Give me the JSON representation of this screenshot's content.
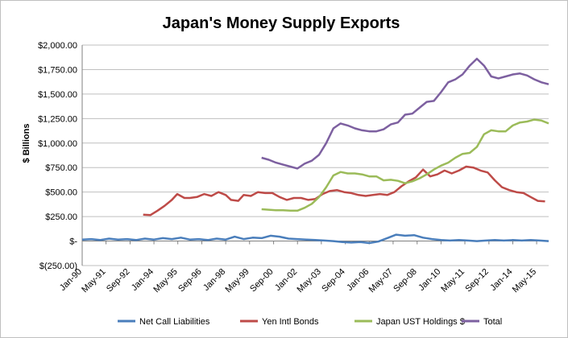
{
  "chart_data": {
    "type": "line",
    "title": "Japan's Money Supply Exports",
    "ylabel": "$ Billions",
    "xlabel": "",
    "ylim": [
      -250,
      2000
    ],
    "y_ticks": [
      {
        "value": 2000,
        "label": "$2,000.00"
      },
      {
        "value": 1750,
        "label": "$1,750.00"
      },
      {
        "value": 1500,
        "label": "$1,500.00"
      },
      {
        "value": 1250,
        "label": "$1,250.00"
      },
      {
        "value": 1000,
        "label": "$1,000.00"
      },
      {
        "value": 750,
        "label": "$750.00"
      },
      {
        "value": 500,
        "label": "$500.00"
      },
      {
        "value": 250,
        "label": "$250.00"
      },
      {
        "value": 0,
        "label": "$-"
      },
      {
        "value": -250,
        "label": "$(250.00)"
      }
    ],
    "x_ticks": [
      {
        "value": 1990.0,
        "label": "Jan-90"
      },
      {
        "value": 1991.33,
        "label": "May-91"
      },
      {
        "value": 1992.67,
        "label": "Sep-92"
      },
      {
        "value": 1994.0,
        "label": "Jan-94"
      },
      {
        "value": 1995.33,
        "label": "May-95"
      },
      {
        "value": 1996.67,
        "label": "Sep-96"
      },
      {
        "value": 1998.0,
        "label": "Jan-98"
      },
      {
        "value": 1999.33,
        "label": "May-99"
      },
      {
        "value": 2000.67,
        "label": "Sep-00"
      },
      {
        "value": 2002.0,
        "label": "Jan-02"
      },
      {
        "value": 2003.33,
        "label": "May-03"
      },
      {
        "value": 2004.67,
        "label": "Sep-04"
      },
      {
        "value": 2006.0,
        "label": "Jan-06"
      },
      {
        "value": 2007.33,
        "label": "May-07"
      },
      {
        "value": 2008.67,
        "label": "Sep-08"
      },
      {
        "value": 2010.0,
        "label": "Jan-10"
      },
      {
        "value": 2011.33,
        "label": "May-11"
      },
      {
        "value": 2012.67,
        "label": "Sep-12"
      },
      {
        "value": 2014.0,
        "label": "Jan-14"
      },
      {
        "value": 2015.33,
        "label": "May-15"
      }
    ],
    "xlim": [
      1990.0,
      2016.0
    ],
    "grid": "horizontal",
    "legend_position": "bottom",
    "series": [
      {
        "name": "Net Call Liabilities",
        "color": "#4a7ebb",
        "x": [
          1990.0,
          1990.5,
          1991.0,
          1991.5,
          1992.0,
          1992.5,
          1993.0,
          1993.5,
          1994.0,
          1994.5,
          1995.0,
          1995.5,
          1996.0,
          1996.5,
          1997.0,
          1997.5,
          1998.0,
          1998.5,
          1999.0,
          1999.5,
          2000.0,
          2000.5,
          2001.0,
          2001.5,
          2002.0,
          2002.5,
          2003.0,
          2003.5,
          2004.0,
          2004.5,
          2005.0,
          2005.5,
          2006.0,
          2006.5,
          2007.0,
          2007.5,
          2008.0,
          2008.5,
          2009.0,
          2009.5,
          2010.0,
          2010.5,
          2011.0,
          2011.5,
          2012.0,
          2012.5,
          2013.0,
          2013.5,
          2014.0,
          2014.5,
          2015.0,
          2015.5,
          2016.0
        ],
        "values": [
          15,
          20,
          10,
          25,
          15,
          20,
          10,
          25,
          15,
          30,
          20,
          35,
          15,
          20,
          10,
          25,
          15,
          45,
          20,
          35,
          30,
          55,
          45,
          25,
          20,
          15,
          10,
          5,
          0,
          -10,
          -15,
          -10,
          -20,
          -5,
          30,
          65,
          55,
          60,
          35,
          20,
          10,
          5,
          10,
          5,
          0,
          5,
          10,
          5,
          10,
          5,
          10,
          5,
          0
        ]
      },
      {
        "name": "Yen Intl Bonds",
        "color": "#be4b48",
        "x": [
          1993.4,
          1993.8,
          1994.2,
          1994.6,
          1995.0,
          1995.3,
          1995.7,
          1996.0,
          1996.4,
          1996.8,
          1997.2,
          1997.6,
          1998.0,
          1998.3,
          1998.7,
          1999.0,
          1999.4,
          1999.8,
          2000.2,
          2000.6,
          2001.0,
          2001.4,
          2001.8,
          2002.2,
          2002.6,
          2003.0,
          2003.4,
          2003.8,
          2004.2,
          2004.6,
          2005.0,
          2005.4,
          2005.8,
          2006.2,
          2006.6,
          2007.0,
          2007.4,
          2007.8,
          2008.2,
          2008.6,
          2009.0,
          2009.4,
          2009.8,
          2010.2,
          2010.6,
          2011.0,
          2011.4,
          2011.8,
          2012.2,
          2012.6,
          2013.0,
          2013.4,
          2013.8,
          2014.2,
          2014.6,
          2015.0,
          2015.4,
          2015.8
        ],
        "values": [
          270,
          265,
          310,
          360,
          420,
          480,
          440,
          440,
          450,
          480,
          460,
          500,
          470,
          420,
          410,
          470,
          460,
          500,
          490,
          490,
          450,
          420,
          440,
          440,
          420,
          430,
          480,
          510,
          520,
          500,
          490,
          470,
          460,
          470,
          480,
          470,
          500,
          560,
          610,
          650,
          730,
          660,
          680,
          720,
          690,
          720,
          760,
          750,
          720,
          700,
          620,
          550,
          520,
          500,
          490,
          450,
          410,
          405
        ]
      },
      {
        "name": "Japan UST Holdings $",
        "color": "#9bbb59",
        "x": [
          2000.0,
          2000.4,
          2000.8,
          2001.2,
          2001.6,
          2002.0,
          2002.4,
          2002.8,
          2003.2,
          2003.6,
          2004.0,
          2004.4,
          2004.8,
          2005.2,
          2005.6,
          2006.0,
          2006.4,
          2006.8,
          2007.2,
          2007.6,
          2008.0,
          2008.4,
          2008.8,
          2009.2,
          2009.6,
          2010.0,
          2010.4,
          2010.8,
          2011.2,
          2011.6,
          2012.0,
          2012.4,
          2012.8,
          2013.2,
          2013.6,
          2014.0,
          2014.4,
          2014.8,
          2015.2,
          2015.6,
          2016.0
        ],
        "values": [
          325,
          320,
          315,
          315,
          310,
          310,
          340,
          380,
          450,
          550,
          670,
          705,
          690,
          690,
          680,
          660,
          660,
          620,
          625,
          615,
          590,
          610,
          640,
          680,
          730,
          770,
          800,
          850,
          890,
          900,
          960,
          1090,
          1130,
          1120,
          1120,
          1180,
          1210,
          1220,
          1240,
          1230,
          1200
        ]
      },
      {
        "name": "Total",
        "color": "#7d60a0",
        "x": [
          2000.0,
          2000.4,
          2000.8,
          2001.2,
          2001.6,
          2002.0,
          2002.4,
          2002.8,
          2003.2,
          2003.6,
          2004.0,
          2004.4,
          2004.8,
          2005.2,
          2005.6,
          2006.0,
          2006.4,
          2006.8,
          2007.2,
          2007.6,
          2008.0,
          2008.4,
          2008.8,
          2009.2,
          2009.6,
          2010.0,
          2010.4,
          2010.8,
          2011.2,
          2011.6,
          2012.0,
          2012.4,
          2012.8,
          2013.2,
          2013.6,
          2014.0,
          2014.4,
          2014.8,
          2015.2,
          2015.6,
          2016.0
        ],
        "values": [
          850,
          830,
          800,
          780,
          760,
          740,
          790,
          820,
          880,
          1000,
          1150,
          1200,
          1180,
          1150,
          1130,
          1120,
          1120,
          1140,
          1190,
          1210,
          1290,
          1300,
          1360,
          1420,
          1430,
          1520,
          1620,
          1650,
          1700,
          1790,
          1860,
          1790,
          1680,
          1660,
          1680,
          1700,
          1710,
          1690,
          1650,
          1620,
          1600
        ]
      }
    ]
  }
}
